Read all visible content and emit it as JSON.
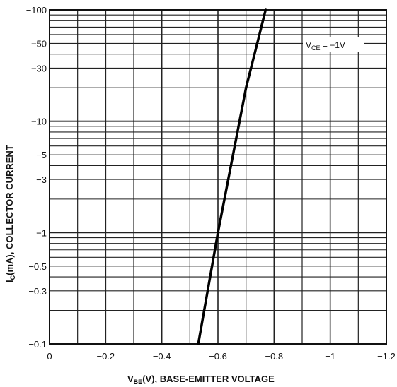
{
  "chart_data": {
    "type": "line",
    "xlabel_main": "V",
    "xlabel_sub": "BE",
    "xlabel_rest": "(V), BASE-EMITTER VOLTAGE",
    "ylabel_main": "I",
    "ylabel_sub": "C",
    "ylabel_rest": "(mA), COLLECTOR CURRENT",
    "annotation": {
      "main": "V",
      "sub": "CE",
      "rest": " = −1V"
    },
    "x_scale": "linear",
    "y_scale": "log",
    "xlim": [
      0,
      -1.2
    ],
    "ylim": [
      0.1,
      100
    ],
    "grid": true,
    "x_ticks": [
      0,
      -0.2,
      -0.4,
      -0.6,
      -0.8,
      -1,
      -1.2
    ],
    "x_tick_labels": [
      "0",
      "−0.2",
      "−0.4",
      "−0.6",
      "−0.8",
      "−1",
      "−1.2"
    ],
    "y_ticks": [
      0.1,
      0.3,
      0.5,
      1,
      3,
      5,
      10,
      30,
      50,
      100
    ],
    "y_tick_labels": [
      "−0.1",
      "−0.3",
      "−0.5",
      "−1",
      "−3",
      "−5",
      "−10",
      "−30",
      "−50",
      "−100"
    ],
    "series": [
      {
        "x": [
          -0.53,
          -0.6,
          -0.7,
          -0.74,
          -0.76,
          -0.77
        ],
        "y": [
          0.1,
          1,
          20,
          50,
          80,
          100
        ]
      }
    ]
  }
}
